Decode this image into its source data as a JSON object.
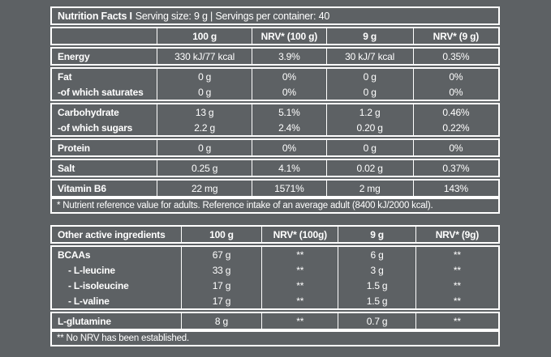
{
  "colors": {
    "background": "#5d6164",
    "border": "#ffffff",
    "text": "#ffffff"
  },
  "nutrition_table": {
    "title_bold": "Nutrition Facts I",
    "title_rest": "Serving size: 9 g | Servings per container: 40",
    "columns": [
      "",
      "100 g",
      "NRV* (100 g)",
      "9 g",
      "NRV* (9 g)"
    ],
    "row_groups": [
      {
        "rows": [
          {
            "label": "Energy",
            "indent": false,
            "values": [
              "330 kJ/77 kcal",
              "3.9%",
              "30 kJ/7 kcal",
              "0.35%"
            ]
          }
        ]
      },
      {
        "rows": [
          {
            "label": "Fat",
            "indent": false,
            "values": [
              "0 g",
              "0%",
              "0 g",
              "0%"
            ]
          },
          {
            "label": "-of which saturates",
            "indent": false,
            "values": [
              "0 g",
              "0%",
              "0 g",
              "0%"
            ]
          }
        ]
      },
      {
        "rows": [
          {
            "label": "Carbohydrate",
            "indent": false,
            "values": [
              "13 g",
              "5.1%",
              "1.2 g",
              "0.46%"
            ]
          },
          {
            "label": "-of which sugars",
            "indent": false,
            "values": [
              "2.2 g",
              "2.4%",
              "0.20 g",
              "0.22%"
            ]
          }
        ]
      },
      {
        "rows": [
          {
            "label": "Protein",
            "indent": false,
            "values": [
              "0 g",
              "0%",
              "0 g",
              "0%"
            ]
          }
        ]
      },
      {
        "rows": [
          {
            "label": "Salt",
            "indent": false,
            "values": [
              "0.25 g",
              "4.1%",
              "0.02 g",
              "0.37%"
            ]
          }
        ]
      },
      {
        "rows": [
          {
            "label": "Vitamin B6",
            "indent": false,
            "values": [
              "22 mg",
              "1571%",
              "2 mg",
              "143%"
            ]
          }
        ]
      }
    ],
    "footnote": "* Nutrient reference value for adults. Reference intake of an average adult (8400 kJ/2000 kcal)."
  },
  "ingredients_table": {
    "columns": [
      "Other active ingredients",
      "100 g",
      "NRV* (100g)",
      "9 g",
      "NRV* (9g)"
    ],
    "row_groups": [
      {
        "rows": [
          {
            "label": "BCAAs",
            "indent": false,
            "values": [
              "67 g",
              "**",
              "6 g",
              "**"
            ]
          },
          {
            "label": "- L-leucine",
            "indent": true,
            "values": [
              "33 g",
              "**",
              "3 g",
              "**"
            ]
          },
          {
            "label": "- L-isoleucine",
            "indent": true,
            "values": [
              "17 g",
              "**",
              "1.5 g",
              "**"
            ]
          },
          {
            "label": "- L-valine",
            "indent": true,
            "values": [
              "17 g",
              "**",
              "1.5 g",
              "**"
            ]
          }
        ]
      },
      {
        "rows": [
          {
            "label": "L-glutamine",
            "indent": false,
            "values": [
              "8 g",
              "**",
              "0.7 g",
              "**"
            ]
          }
        ]
      }
    ],
    "footnote": "** No NRV has been established."
  }
}
